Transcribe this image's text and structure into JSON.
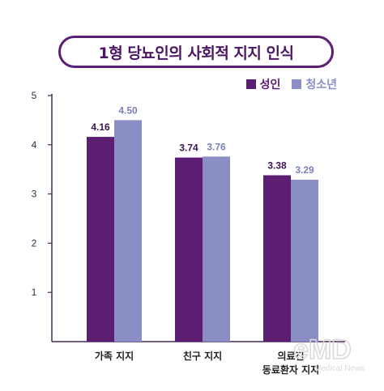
{
  "chart_data": {
    "type": "bar",
    "title": "1형 당뇨인의 사회적 지지 인식",
    "categories": [
      "가족 지지",
      "친구 지지",
      "의료진 동료환자 지지"
    ],
    "category_lines": [
      [
        "가족 지지"
      ],
      [
        "친구 지지"
      ],
      [
        "의료진",
        "동료환자 지지"
      ]
    ],
    "series": [
      {
        "name": "성인",
        "values": [
          4.16,
          3.74,
          3.38
        ],
        "labels": [
          "4.16",
          "3.74",
          "3.38"
        ],
        "color": "#5b1e73",
        "label_color": "#3a1450"
      },
      {
        "name": "청소년",
        "values": [
          4.5,
          3.76,
          3.29
        ],
        "labels": [
          "4.50",
          "3.76",
          "3.29"
        ],
        "color": "#8b8ec5",
        "label_color": "#7b7fb8"
      }
    ],
    "ylim": [
      0,
      5
    ],
    "yticks": [
      1,
      2,
      3,
      4,
      5
    ],
    "ytick_labels": [
      "1",
      "2",
      "3",
      "4",
      "5"
    ],
    "grid": false,
    "legend_position": "top-right",
    "xlabel": "",
    "ylabel": ""
  },
  "watermark": {
    "text": "eMD",
    "subtext": "Medical News"
  }
}
